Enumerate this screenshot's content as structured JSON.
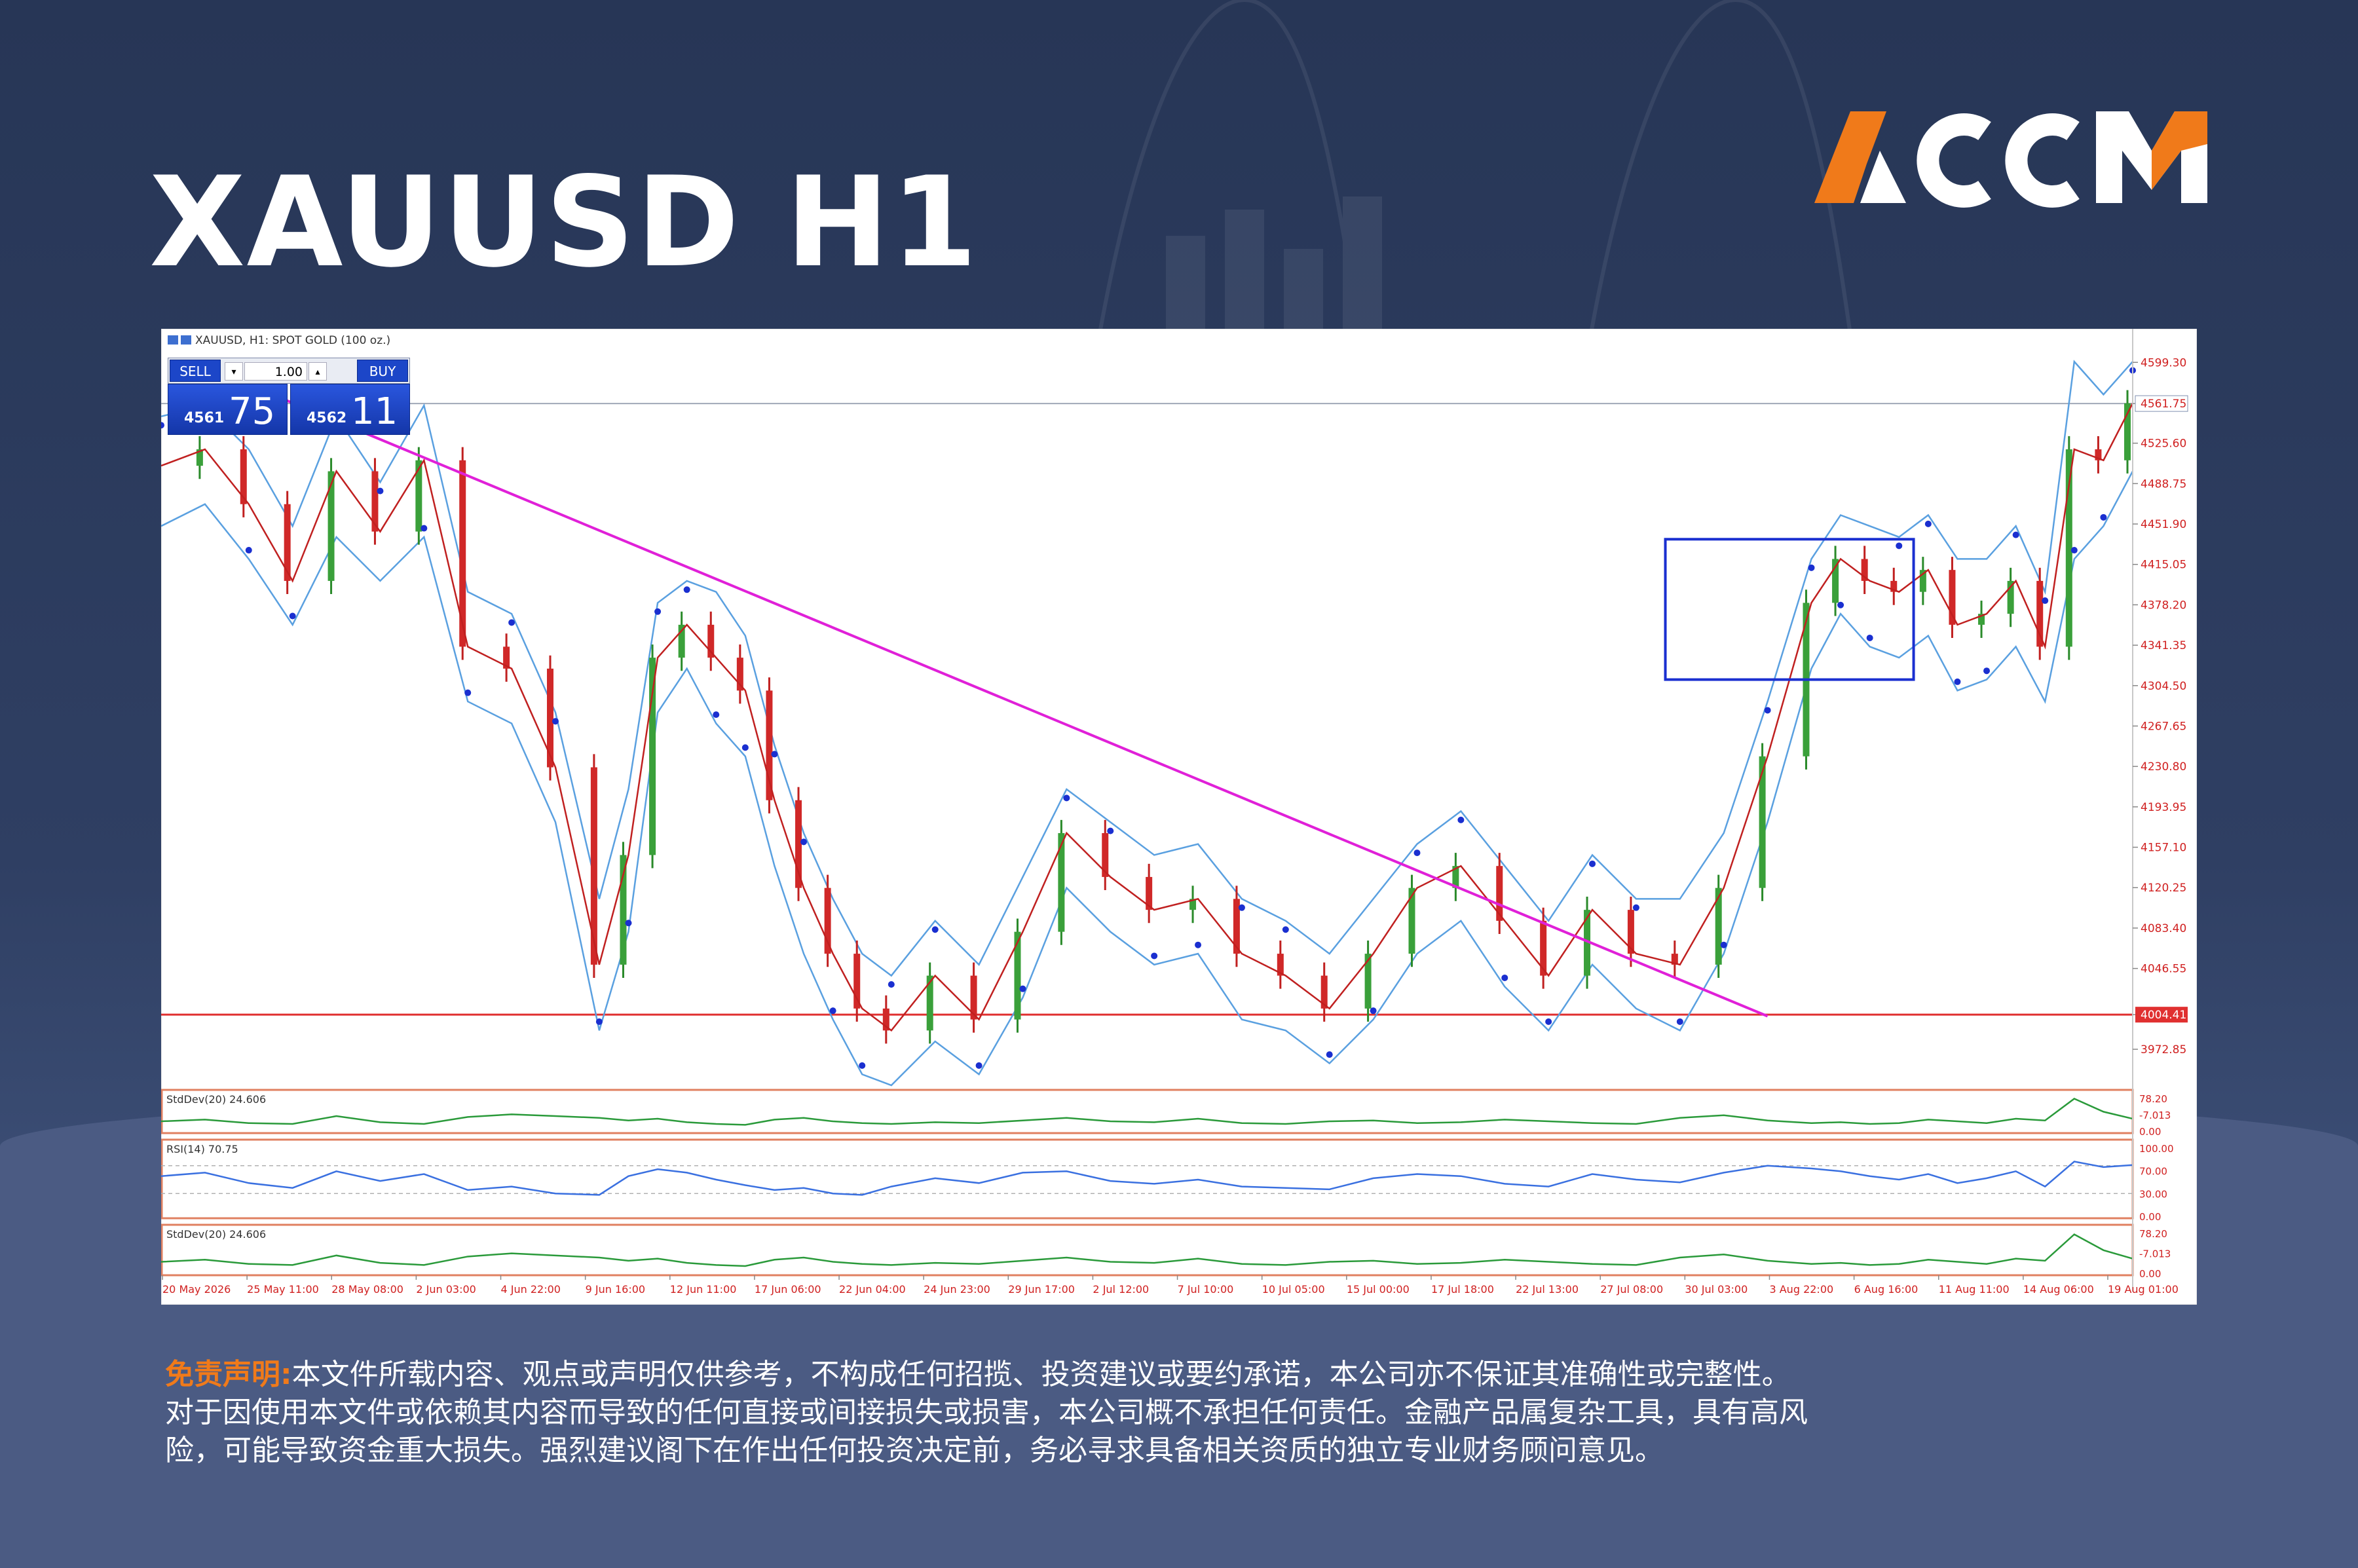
{
  "page": {
    "title": "XAUUSD H1",
    "logo_text": "ACCM",
    "colors": {
      "background": "#2b3a5e",
      "title": "#ffffff",
      "logo_orange": "#f07a1a",
      "logo_white": "#ffffff",
      "disclaimer_label": "#f07a1a"
    }
  },
  "chart_header": "XAUUSD, H1:  SPOT GOLD (100 oz.)",
  "trade_panel": {
    "sell_label": "SELL",
    "buy_label": "BUY",
    "lot_value": "1.00",
    "sell_price_small": "4561",
    "sell_price_big": "75",
    "buy_price_small": "4562",
    "buy_price_big": "11"
  },
  "chart_data": {
    "type": "line",
    "symbol": "XAUUSD",
    "timeframe": "H1",
    "ylim": [
      3940,
      4612
    ],
    "y_ticks": [
      "4599.30",
      "4561.75",
      "4525.60",
      "4488.75",
      "4451.90",
      "4415.05",
      "4378.20",
      "4341.35",
      "4304.50",
      "4267.65",
      "4230.80",
      "4193.95",
      "4157.10",
      "4120.25",
      "4083.40",
      "4046.55",
      "4004.41",
      "3972.85"
    ],
    "x_ticks": [
      "20 May 2026",
      "25 May 11:00",
      "28 May 08:00",
      "2 Jun 03:00",
      "4 Jun 22:00",
      "9 Jun 16:00",
      "12 Jun 11:00",
      "17 Jun 06:00",
      "22 Jun 04:00",
      "24 Jun 23:00",
      "29 Jun 17:00",
      "2 Jul 12:00",
      "7 Jul 10:00",
      "10 Jul 05:00",
      "15 Jul 00:00",
      "17 Jul 18:00",
      "22 Jul 13:00",
      "27 Jul 08:00",
      "30 Jul 03:00",
      "3 Aug 22:00",
      "6 Aug 16:00",
      "11 Aug 11:00",
      "14 Aug 06:00",
      "19 Aug 01:00"
    ],
    "current_price": 4561.75,
    "price_labels": {
      "current": "4561.75",
      "support": "4004.41"
    },
    "series": [
      {
        "name": "XAUUSD H1",
        "x": [
          0,
          6,
          12,
          18,
          24,
          30,
          36,
          42,
          48,
          54,
          60,
          64,
          68,
          72,
          76,
          80,
          84,
          88,
          92,
          96,
          100,
          106,
          112,
          118,
          124,
          130,
          136,
          142,
          148,
          154,
          160,
          166,
          172,
          178,
          184,
          190,
          196,
          202,
          208,
          214,
          220,
          226,
          230,
          234,
          238,
          242,
          246,
          250,
          254,
          258,
          262,
          266,
          270
        ],
        "y": [
          4505,
          4520,
          4470,
          4400,
          4500,
          4445,
          4510,
          4340,
          4320,
          4230,
          4050,
          4150,
          4330,
          4360,
          4330,
          4300,
          4200,
          4120,
          4060,
          4010,
          3990,
          4040,
          4000,
          4080,
          4170,
          4130,
          4100,
          4110,
          4060,
          4040,
          4010,
          4060,
          4120,
          4140,
          4090,
          4040,
          4100,
          4060,
          4050,
          4120,
          4240,
          4380,
          4420,
          4400,
          4390,
          4410,
          4360,
          4370,
          4400,
          4340,
          4520,
          4510,
          4562
        ]
      }
    ],
    "lower_band": [
      4450,
      4470,
      4420,
      4360,
      4440,
      4400,
      4440,
      4290,
      4270,
      4180,
      3990,
      4080,
      4280,
      4320,
      4270,
      4240,
      4140,
      4060,
      4000,
      3950,
      3940,
      3980,
      3950,
      4020,
      4120,
      4080,
      4050,
      4060,
      4000,
      3990,
      3960,
      4000,
      4060,
      4090,
      4030,
      3990,
      4050,
      4010,
      3990,
      4060,
      4180,
      4320,
      4370,
      4340,
      4330,
      4350,
      4300,
      4310,
      4340,
      4290,
      4420,
      4450,
      4500
    ],
    "upper_band": [
      4550,
      4560,
      4520,
      4450,
      4550,
      4490,
      4560,
      4390,
      4370,
      4280,
      4110,
      4210,
      4380,
      4400,
      4390,
      4350,
      4250,
      4170,
      4110,
      4060,
      4040,
      4090,
      4050,
      4130,
      4210,
      4180,
      4150,
      4160,
      4110,
      4090,
      4060,
      4110,
      4160,
      4190,
      4140,
      4090,
      4150,
      4110,
      4110,
      4170,
      4290,
      4420,
      4460,
      4450,
      4440,
      4460,
      4420,
      4420,
      4450,
      4390,
      4600,
      4570,
      4600
    ],
    "trendline": {
      "x": [
        8,
        220
      ],
      "y": [
        4590,
        4003
      ]
    },
    "support_level": 4004.41,
    "range_box": {
      "x": [
        206,
        240
      ],
      "y": [
        4310,
        4438
      ]
    },
    "indicators": [
      {
        "name": "StdDev(20) 24.606",
        "ylim": [
          0,
          78.2
        ],
        "y_ticks": [
          "78.20",
          "-7.013",
          "0.00"
        ],
        "values": [
          18,
          22,
          14,
          12,
          30,
          16,
          12,
          28,
          34,
          30,
          26,
          20,
          24,
          16,
          12,
          10,
          22,
          26,
          18,
          14,
          12,
          16,
          14,
          20,
          26,
          18,
          16,
          24,
          14,
          12,
          18,
          20,
          14,
          16,
          22,
          18,
          14,
          12,
          26,
          32,
          20,
          14,
          16,
          12,
          14,
          22,
          18,
          14,
          24,
          20,
          70,
          40,
          24
        ]
      },
      {
        "name": "RSI(14) 70.75",
        "ylim": [
          0,
          100
        ],
        "y_ticks": [
          "100.00",
          "70.00",
          "30.00",
          "0.00"
        ],
        "levels": [
          70,
          30
        ],
        "values": [
          55,
          60,
          45,
          38,
          62,
          48,
          58,
          35,
          40,
          30,
          28,
          55,
          65,
          60,
          50,
          42,
          35,
          38,
          30,
          28,
          40,
          52,
          45,
          60,
          62,
          48,
          44,
          50,
          40,
          38,
          36,
          52,
          58,
          55,
          44,
          40,
          58,
          50,
          46,
          60,
          70,
          66,
          62,
          55,
          50,
          58,
          45,
          52,
          62,
          40,
          76,
          68,
          71
        ]
      },
      {
        "name": "StdDev(20) 24.606",
        "ylim": [
          0,
          78.2
        ],
        "y_ticks": [
          "78.20",
          "-7.013",
          "0.00"
        ],
        "values": [
          18,
          22,
          14,
          12,
          30,
          16,
          12,
          28,
          34,
          30,
          26,
          20,
          24,
          16,
          12,
          10,
          22,
          26,
          18,
          14,
          12,
          16,
          14,
          20,
          26,
          18,
          16,
          24,
          14,
          12,
          18,
          20,
          14,
          16,
          22,
          18,
          14,
          12,
          26,
          32,
          20,
          14,
          16,
          12,
          14,
          22,
          18,
          14,
          24,
          20,
          70,
          40,
          24
        ]
      }
    ]
  },
  "disclaimer": {
    "label": "免责声明:",
    "line1": "本文件所载内容、观点或声明仅供参考，不构成任何招揽、投资建议或要约承诺，本公司亦不保证其准确性或完整性。",
    "line2": "对于因使用本文件或依赖其内容而导致的任何直接或间接损失或损害，本公司概不承担任何责任。金融产品属复杂工具，具有高风",
    "line3": "险，可能导致资金重大损失。强烈建议阁下在作出任何投资决定前，务必寻求具备相关资质的独立专业财务顾问意见。"
  }
}
